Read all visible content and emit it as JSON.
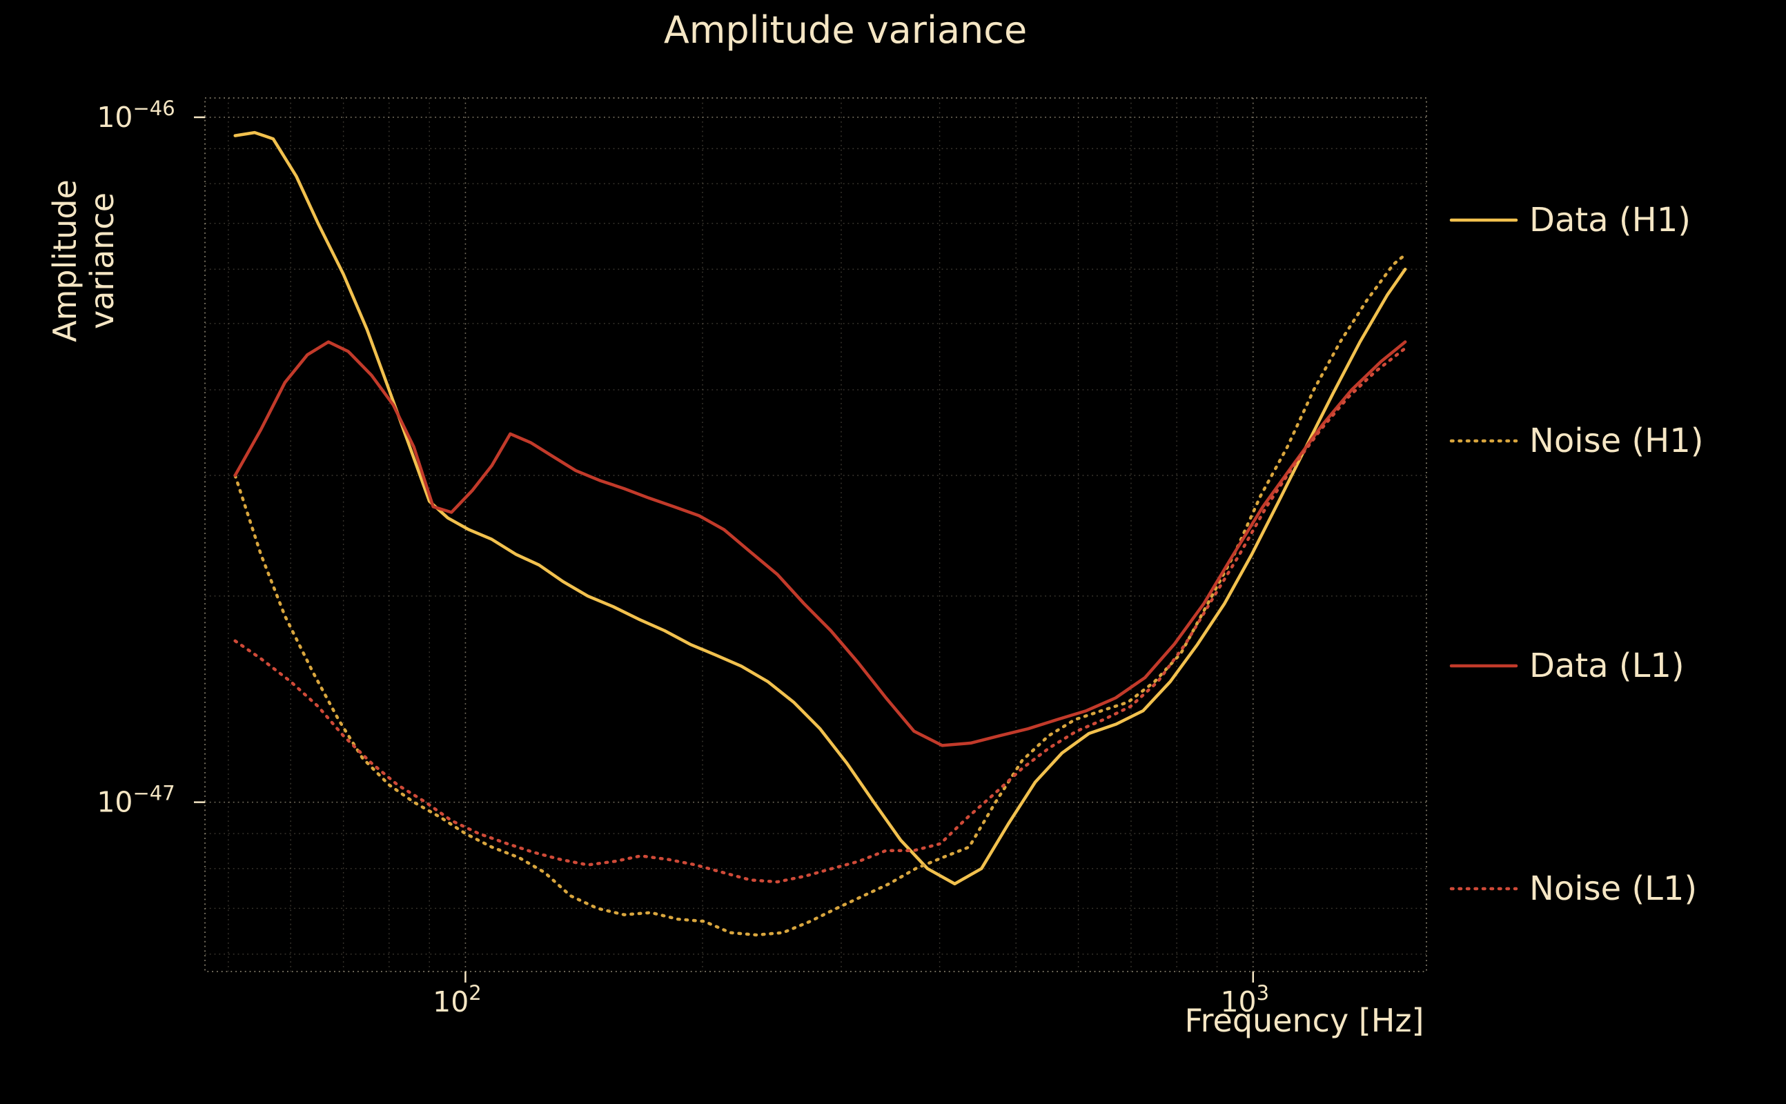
{
  "chart_data": {
    "type": "line",
    "title": "Amplitude variance",
    "xlabel": "Frequency [Hz]",
    "ylabel": "Amplitude variance",
    "xscale": "log",
    "yscale": "log",
    "xlim": [
      46.7,
      1660
    ],
    "ylim": [
      5.66e-48,
      1.067e-46
    ],
    "grid": true,
    "background_color": "#000000",
    "text_color": "#f5e6c4",
    "legend_position": "right-outside",
    "x_ticks": [
      {
        "value": 100,
        "base": "10",
        "exp": "2"
      },
      {
        "value": 1000,
        "base": "10",
        "exp": "3"
      }
    ],
    "y_ticks": [
      {
        "value": 1e-46,
        "base": "10",
        "exp": "−46"
      },
      {
        "value": 1e-47,
        "base": "10",
        "exp": "−47"
      }
    ],
    "series": [
      {
        "label": "Data (H1)",
        "color": "#f2c14e",
        "style": "solid",
        "x": [
          51,
          54,
          57,
          61,
          65,
          70,
          75,
          80,
          85,
          90,
          95,
          101,
          108,
          116,
          124,
          133,
          143,
          154,
          166,
          179,
          193,
          208,
          224,
          242,
          261,
          282,
          305,
          330,
          357,
          386,
          418,
          452,
          489,
          529,
          572,
          619,
          670,
          725,
          785,
          850,
          920,
          996,
          1078,
          1167,
          1263,
          1367,
          1480,
          1560
        ],
        "y": [
          9.4e-47,
          9.5e-47,
          9.3e-47,
          8.2e-47,
          7e-47,
          5.9e-47,
          4.9e-47,
          4e-47,
          3.3e-47,
          2.75e-47,
          2.6e-47,
          2.5e-47,
          2.42e-47,
          2.3e-47,
          2.22e-47,
          2.1e-47,
          2e-47,
          1.93e-47,
          1.85e-47,
          1.78e-47,
          1.7e-47,
          1.64e-47,
          1.58e-47,
          1.5e-47,
          1.4e-47,
          1.28e-47,
          1.14e-47,
          1e-47,
          8.8e-48,
          8e-48,
          7.6e-48,
          8e-48,
          9.3e-48,
          1.07e-47,
          1.18e-47,
          1.26e-47,
          1.3e-47,
          1.36e-47,
          1.5e-47,
          1.7e-47,
          1.95e-47,
          2.3e-47,
          2.75e-47,
          3.3e-47,
          3.95e-47,
          4.7e-47,
          5.5e-47,
          6e-47
        ]
      },
      {
        "label": "Noise (H1)",
        "color": "#d9a63e",
        "style": "dotted",
        "x": [
          51,
          55,
          59,
          64,
          69,
          74,
          80,
          86,
          93,
          100,
          108,
          117,
          126,
          136,
          147,
          159,
          172,
          186,
          201,
          217,
          234,
          253,
          274,
          296,
          320,
          345,
          373,
          403,
          436,
          471,
          509,
          550,
          594,
          642,
          694,
          750,
          810,
          876,
          946,
          1022,
          1105,
          1194,
          1290,
          1394,
          1507,
          1560
        ],
        "y": [
          3e-47,
          2.3e-47,
          1.87e-47,
          1.55e-47,
          1.32e-47,
          1.16e-47,
          1.06e-47,
          1e-47,
          9.5e-48,
          9e-48,
          8.6e-48,
          8.3e-48,
          7.9e-48,
          7.3e-48,
          7e-48,
          6.85e-48,
          6.9e-48,
          6.75e-48,
          6.7e-48,
          6.45e-48,
          6.4e-48,
          6.45e-48,
          6.7e-48,
          7e-48,
          7.3e-48,
          7.6e-48,
          8e-48,
          8.3e-48,
          8.6e-48,
          1e-47,
          1.15e-47,
          1.25e-47,
          1.32e-47,
          1.36e-47,
          1.4e-47,
          1.5e-47,
          1.65e-47,
          1.95e-47,
          2.3e-47,
          2.8e-47,
          3.3e-47,
          4e-47,
          4.7e-47,
          5.4e-47,
          6.1e-47,
          6.3e-47
        ]
      },
      {
        "label": "Data (L1)",
        "color": "#c23a2a",
        "style": "solid",
        "x": [
          51,
          55,
          59,
          63,
          67,
          71,
          76,
          81,
          86,
          91,
          96,
          102,
          108,
          114,
          121,
          129,
          138,
          148,
          159,
          171,
          184,
          198,
          213,
          230,
          249,
          269,
          291,
          315,
          342,
          371,
          403,
          438,
          476,
          518,
          564,
          614,
          669,
          729,
          794,
          866,
          944,
          1029,
          1122,
          1223,
          1334,
          1454,
          1560
        ],
        "y": [
          3e-47,
          3.5e-47,
          4.1e-47,
          4.5e-47,
          4.7e-47,
          4.55e-47,
          4.2e-47,
          3.8e-47,
          3.3e-47,
          2.7e-47,
          2.65e-47,
          2.85e-47,
          3.1e-47,
          3.45e-47,
          3.35e-47,
          3.2e-47,
          3.05e-47,
          2.95e-47,
          2.87e-47,
          2.78e-47,
          2.7e-47,
          2.62e-47,
          2.5e-47,
          2.32e-47,
          2.15e-47,
          1.95e-47,
          1.78e-47,
          1.6e-47,
          1.42e-47,
          1.27e-47,
          1.21e-47,
          1.22e-47,
          1.25e-47,
          1.28e-47,
          1.32e-47,
          1.36e-47,
          1.42e-47,
          1.52e-47,
          1.7e-47,
          1.95e-47,
          2.3e-47,
          2.7e-47,
          3.1e-47,
          3.55e-47,
          4e-47,
          4.4e-47,
          4.7e-47
        ]
      },
      {
        "label": "Noise (L1)",
        "color": "#cf4a38",
        "style": "dotted",
        "x": [
          51,
          55,
          60,
          65,
          70,
          76,
          82,
          89,
          96,
          104,
          113,
          122,
          132,
          143,
          155,
          167,
          181,
          196,
          212,
          230,
          249,
          270,
          292,
          316,
          342,
          371,
          401,
          434,
          470,
          509,
          551,
          597,
          646,
          699,
          757,
          820,
          888,
          961,
          1040,
          1126,
          1219,
          1320,
          1429,
          1560
        ],
        "y": [
          1.72e-47,
          1.62e-47,
          1.5e-47,
          1.38e-47,
          1.25e-47,
          1.14e-47,
          1.06e-47,
          1e-47,
          9.4e-48,
          9e-48,
          8.7e-48,
          8.45e-48,
          8.25e-48,
          8.1e-48,
          8.2e-48,
          8.35e-48,
          8.25e-48,
          8.1e-48,
          7.9e-48,
          7.7e-48,
          7.65e-48,
          7.8e-48,
          8e-48,
          8.2e-48,
          8.5e-48,
          8.5e-48,
          8.7e-48,
          9.5e-48,
          1.03e-47,
          1.12e-47,
          1.2e-47,
          1.27e-47,
          1.32e-47,
          1.38e-47,
          1.5e-47,
          1.7e-47,
          1.98e-47,
          2.3e-47,
          2.7e-47,
          3.1e-47,
          3.5e-47,
          3.9e-47,
          4.25e-47,
          4.6e-47
        ]
      }
    ]
  }
}
